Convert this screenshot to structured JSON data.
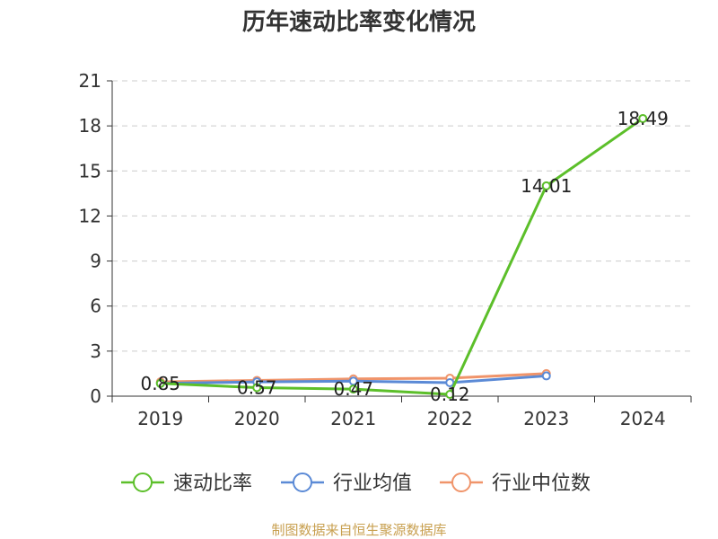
{
  "chart_data": {
    "type": "line",
    "title": "历年速动比率变化情况",
    "categories": [
      "2019",
      "2020",
      "2021",
      "2022",
      "2023",
      "2024"
    ],
    "y_ticks": [
      "0",
      "3",
      "6",
      "9",
      "12",
      "15",
      "18",
      "21"
    ],
    "ylim": [
      0,
      21
    ],
    "grid": true,
    "legend_position": "bottom",
    "series": [
      {
        "name": "速动比率",
        "color": "#5cbf2a",
        "values": [
          0.85,
          0.57,
          0.47,
          0.12,
          14.01,
          18.49
        ],
        "labels": [
          "0.85",
          "0.57",
          "0.47",
          "0.12",
          "14.01",
          "18.49"
        ]
      },
      {
        "name": "行业均值",
        "color": "#5b8ad6",
        "values": [
          0.85,
          0.95,
          1.0,
          0.9,
          1.35,
          null
        ]
      },
      {
        "name": "行业中位数",
        "color": "#f0946a",
        "values": [
          0.95,
          1.05,
          1.15,
          1.2,
          1.5,
          null
        ]
      }
    ],
    "source": "制图数据来自恒生聚源数据库"
  }
}
